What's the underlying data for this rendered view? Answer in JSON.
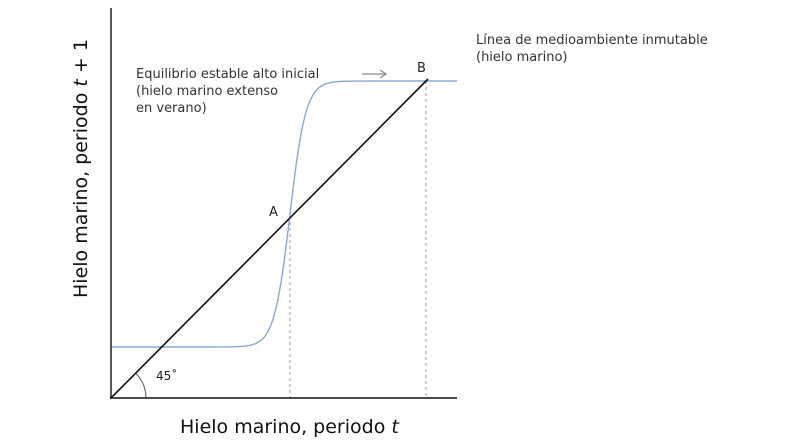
{
  "axes": {
    "x_title": "Hielo marino, periodo",
    "x_var": "t",
    "y_title": "Hielo marino, periodo",
    "y_var": "t",
    "y_suffix": " + 1"
  },
  "line_45": {
    "label": "Línea de medioambiente inmutable",
    "label_line2": "(hielo marino)",
    "angle_label": "45˚"
  },
  "points": {
    "a": {
      "label": "A"
    },
    "b": {
      "label": "B"
    }
  },
  "annotation": {
    "lines": [
      "Equilibrio estable alto inicial",
      "(hielo marino extenso",
      "en verano)"
    ],
    "arrow": "right-arrow"
  },
  "colors": {
    "curve": "#8aa7d8",
    "line": "#111111",
    "axis": "#111111",
    "dashed": "#999999",
    "arrow": "#888888"
  }
}
